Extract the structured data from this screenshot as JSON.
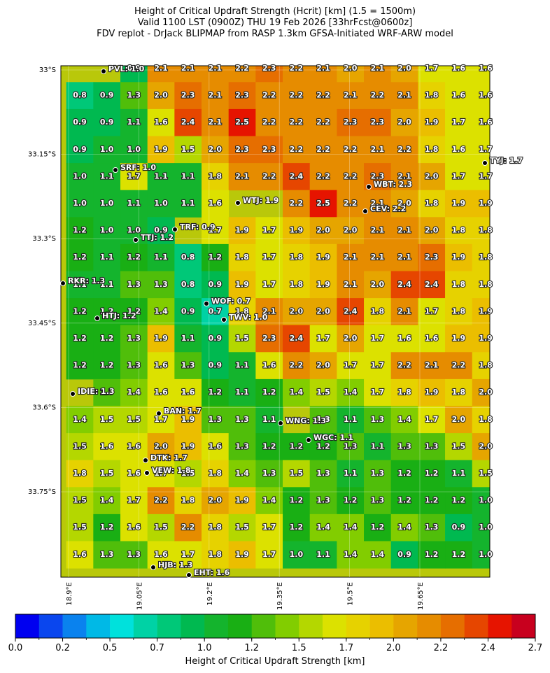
{
  "title": [
    "Height of Critical Updraft Strength (Hcrit) [km] (1.5 = 1500m)",
    "Valid 1100 LST (0900Z) THU 19 Feb 2026 [33hrFcst@0600z]",
    "FDV replot - DrJack BLIPMAP from RASP 1.3km GFSA-Initiated WRF-ARW model"
  ],
  "map": {
    "lat_labels": [
      "33°S",
      "33.15°S",
      "33.3°S",
      "33.45°S",
      "33.6°S",
      "33.75°S"
    ],
    "lon_labels": [
      "18.9°E",
      "19.05°E",
      "19.2°E",
      "19.35°E",
      "19.5°E",
      "19.65°E"
    ],
    "grid": [
      [
        null,
        null,
        "0.9",
        "2.1",
        "2.1",
        "2.1",
        "2.2",
        "2.3",
        "2.2",
        "2.1",
        "2.0",
        "2.1",
        "2.0",
        "1.7",
        "1.6",
        "1.6"
      ],
      [
        "0.8",
        "0.9",
        "1.3",
        "2.0",
        "2.3",
        "2.1",
        "2.3",
        "2.2",
        "2.2",
        "2.2",
        "2.1",
        "2.2",
        "2.1",
        "1.8",
        "1.6",
        "1.6"
      ],
      [
        "0.9",
        "0.9",
        "1.1",
        "1.6",
        "2.4",
        "2.1",
        "2.5",
        "2.2",
        "2.2",
        "2.2",
        "2.3",
        "2.3",
        "2.0",
        "1.9",
        "1.7",
        "1.6"
      ],
      [
        "0.9",
        "1.0",
        "1.0",
        "1.9",
        "1.5",
        "2.0",
        "2.3",
        "2.3",
        "2.2",
        "2.2",
        "2.2",
        "2.1",
        "2.2",
        "1.8",
        "1.6",
        "1.7"
      ],
      [
        "1.0",
        "1.1",
        "1.7",
        "1.1",
        "1.1",
        "1.8",
        "2.1",
        "2.2",
        "2.4",
        "2.2",
        "2.2",
        "2.3",
        "2.1",
        "2.0",
        "1.7",
        "1.7"
      ],
      [
        "1.0",
        "1.0",
        "1.1",
        "1.0",
        "1.1",
        "1.6",
        null,
        null,
        "2.2",
        "2.5",
        "2.2",
        "2.1",
        "2.0",
        "1.8",
        "1.9",
        "1.9"
      ],
      [
        "1.2",
        "1.0",
        "1.0",
        "0.9",
        null,
        "1.7",
        "1.9",
        "1.7",
        "1.9",
        "2.0",
        "2.0",
        "2.1",
        "2.1",
        "2.0",
        "1.8",
        "1.8"
      ],
      [
        "1.2",
        "1.1",
        "1.2",
        "1.1",
        "0.8",
        "1.2",
        "1.8",
        "1.7",
        "1.8",
        "1.9",
        "2.1",
        "2.1",
        "2.1",
        "2.3",
        "1.9",
        "1.8"
      ],
      [
        "1.1",
        "1.1",
        "1.3",
        "1.3",
        "0.8",
        "0.9",
        "1.9",
        "1.7",
        "1.8",
        "1.9",
        "2.1",
        "2.0",
        "2.4",
        "2.4",
        "1.8",
        "1.8"
      ],
      [
        "1.2",
        "1.2",
        "1.2",
        "1.4",
        "0.9",
        "0.7",
        "1.8",
        "2.1",
        "2.0",
        "2.0",
        "2.4",
        "1.8",
        "2.1",
        "1.7",
        "1.8",
        "1.9"
      ],
      [
        "1.2",
        "1.2",
        "1.3",
        "1.9",
        "1.1",
        "0.9",
        "1.5",
        "2.3",
        "2.4",
        "1.7",
        "2.0",
        "1.7",
        "1.6",
        "1.6",
        "1.9",
        "1.9"
      ],
      [
        "1.2",
        "1.2",
        "1.3",
        "1.6",
        "1.3",
        "0.9",
        "1.1",
        "1.6",
        "2.2",
        "2.0",
        "1.7",
        "1.7",
        "2.2",
        "2.1",
        "2.2",
        "1.8"
      ],
      [
        null,
        "1.3",
        "1.4",
        "1.6",
        "1.6",
        "1.2",
        "1.1",
        "1.2",
        "1.4",
        "1.5",
        "1.4",
        "1.7",
        "1.8",
        "1.9",
        "1.8",
        "2.0"
      ],
      [
        "1.4",
        "1.5",
        "1.5",
        "1.7",
        "1.9",
        "1.3",
        "1.3",
        "1.1",
        null,
        "1.3",
        "1.1",
        "1.3",
        "1.4",
        "1.7",
        "2.0",
        "1.8"
      ],
      [
        "1.5",
        "1.6",
        "1.6",
        "2.0",
        "1.9",
        "1.6",
        "1.3",
        "1.2",
        "1.2",
        "1.2",
        "1.3",
        "1.1",
        "1.3",
        "1.3",
        "1.5",
        "2.0"
      ],
      [
        "1.8",
        "1.5",
        "1.6",
        "1.7",
        "1.5",
        "1.8",
        "1.4",
        "1.3",
        "1.5",
        "1.3",
        "1.1",
        "1.3",
        "1.2",
        "1.2",
        "1.1",
        "1.5"
      ],
      [
        "1.5",
        "1.4",
        "1.7",
        "2.2",
        "1.8",
        "2.0",
        "1.9",
        "1.4",
        "1.2",
        "1.3",
        "1.2",
        "1.3",
        "1.2",
        "1.2",
        "1.2",
        "1.0"
      ],
      [
        "1.5",
        "1.2",
        "1.6",
        "1.5",
        "2.2",
        "1.8",
        "1.5",
        "1.7",
        "1.2",
        "1.4",
        "1.4",
        "1.2",
        "1.4",
        "1.3",
        "0.9",
        "1.0"
      ],
      [
        "1.6",
        "1.3",
        "1.3",
        "1.6",
        "1.7",
        "1.8",
        "1.9",
        "1.7",
        "1.0",
        "1.1",
        "1.4",
        "1.4",
        "0.9",
        "1.2",
        "1.2",
        "1.0"
      ]
    ],
    "stations": [
      "PVL: 1.0",
      "SRF: 1.0",
      "TRF: 0.9",
      "TTJ: 1.2",
      "RKR: 1.3",
      "WOF: 0.7",
      "HTJ: 1.2",
      "TWV: 1.0",
      "WTJ: 1.9",
      "WBT: 2.3",
      "CEV: 2.2",
      "TYJ: 1.7",
      "IDIE: 1.3",
      "BAN: 1.7",
      "WNG: 1.3",
      "WGC: 1.1",
      "DTK: 1.7",
      "VEW: 1.8",
      "HJB: 1.3",
      "EHT: 1.6"
    ]
  },
  "colorbar": {
    "label": "Height of Critical Updraft Strength [km]",
    "labels": [
      "0.0",
      "0.2",
      "0.5",
      "0.7",
      "1.0",
      "1.2",
      "1.5",
      "1.7",
      "2.0",
      "2.2",
      "2.4",
      "2.7"
    ],
    "colors": [
      "#0000f0",
      "#0a46ee",
      "#0a82ee",
      "#00b9e6",
      "#00e1dc",
      "#00d2a5",
      "#00c878",
      "#00b950",
      "#14b42d",
      "#19af14",
      "#50be0a",
      "#82cd00",
      "#b4d700",
      "#dce100",
      "#e6d200",
      "#ebbe00",
      "#e6a500",
      "#e68c00",
      "#e66e00",
      "#e64600",
      "#e61400",
      "#c8001e"
    ]
  }
}
